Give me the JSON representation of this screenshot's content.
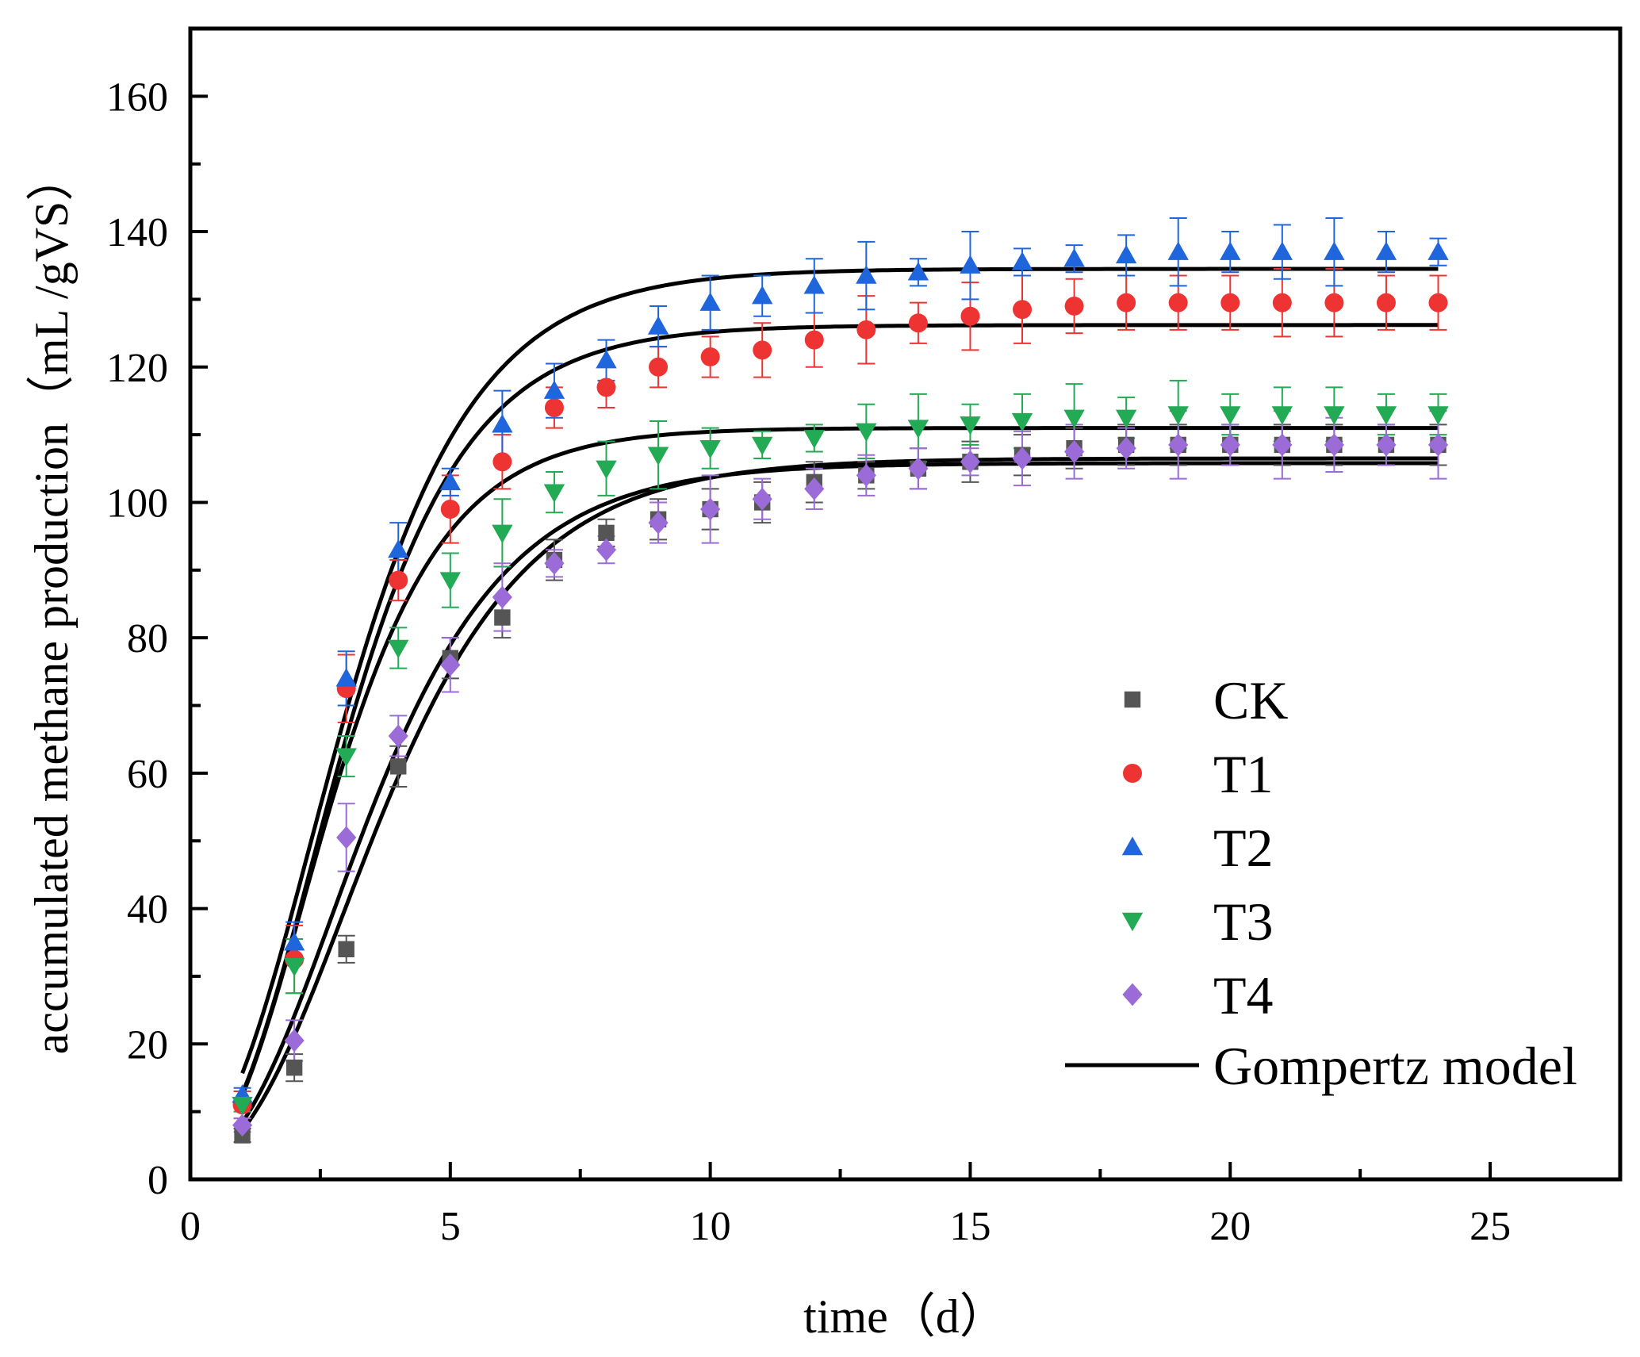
{
  "chart_data": {
    "type": "scatter",
    "title": "",
    "xlabel": "time（d）",
    "ylabel": "accumulated methane production（mL /gVS）",
    "xlim": [
      0,
      27.5
    ],
    "ylim": [
      0,
      170
    ],
    "xticks": [
      0,
      5,
      10,
      15,
      20,
      25
    ],
    "yticks": [
      0,
      20,
      40,
      60,
      80,
      100,
      120,
      140,
      160
    ],
    "x_tick_labels": [
      "0",
      "5",
      "10",
      "15",
      "20",
      "25"
    ],
    "y_tick_labels": [
      "0",
      "20",
      "40",
      "60",
      "80",
      "100",
      "120",
      "140",
      "160"
    ],
    "legend_position": "right",
    "series": [
      {
        "name": "CK",
        "marker": "square",
        "color": "#555555",
        "x": [
          1,
          2,
          3,
          4,
          5,
          6,
          7,
          8,
          9,
          10,
          11,
          12,
          13,
          14,
          15,
          16,
          17,
          18,
          19,
          20,
          21,
          22,
          23,
          24
        ],
        "y": [
          6.5,
          16.5,
          34,
          61,
          77,
          83,
          91.5,
          95.5,
          97.5,
          99,
          100,
          103,
          104,
          105,
          106,
          107,
          108,
          108.5,
          108.5,
          108.5,
          108.5,
          108.5,
          108.5,
          108.5
        ],
        "err": [
          1,
          2,
          2,
          3,
          3,
          3,
          3,
          2,
          3,
          3,
          3,
          3,
          2,
          3,
          3,
          3,
          3,
          3,
          3,
          3,
          3,
          3,
          3,
          3
        ]
      },
      {
        "name": "T1",
        "marker": "circle",
        "color": "#ee3333",
        "x": [
          1,
          2,
          3,
          4,
          5,
          6,
          7,
          8,
          9,
          10,
          11,
          12,
          13,
          14,
          15,
          16,
          17,
          18,
          19,
          20,
          21,
          22,
          23,
          24
        ],
        "y": [
          11,
          32.5,
          72.5,
          88.5,
          99,
          106,
          114,
          117,
          120,
          121.5,
          122.5,
          124,
          125.5,
          126.5,
          127.5,
          128.5,
          129,
          129.5,
          129.5,
          129.5,
          129.5,
          129.5,
          129.5,
          129.5
        ],
        "err": [
          2,
          5,
          5,
          3,
          5,
          4,
          3,
          3,
          3,
          3,
          4,
          4,
          5,
          3,
          5,
          5,
          4,
          4,
          4,
          4,
          5,
          5,
          4,
          4
        ]
      },
      {
        "name": "T2",
        "marker": "triangle-up",
        "color": "#1f66dd",
        "x": [
          1,
          2,
          3,
          4,
          5,
          6,
          7,
          8,
          9,
          10,
          11,
          12,
          13,
          14,
          15,
          16,
          17,
          18,
          19,
          20,
          21,
          22,
          23,
          24
        ],
        "y": [
          12.5,
          35,
          74,
          93,
          103,
          111.5,
          116.5,
          121,
          126,
          129.5,
          130.5,
          132,
          133.5,
          134,
          135,
          135.5,
          136,
          136.5,
          137,
          137,
          137,
          137,
          137,
          137
        ],
        "err": [
          1,
          3,
          4,
          4,
          2,
          5,
          4,
          3,
          3,
          4,
          3,
          4,
          5,
          2,
          5,
          2,
          2,
          3,
          5,
          3,
          4,
          5,
          3,
          2
        ]
      },
      {
        "name": "T3",
        "marker": "triangle-down",
        "color": "#22aa55",
        "x": [
          1,
          2,
          3,
          4,
          5,
          6,
          7,
          8,
          9,
          10,
          11,
          12,
          13,
          14,
          15,
          16,
          17,
          18,
          19,
          20,
          21,
          22,
          23,
          24
        ],
        "y": [
          11,
          31.5,
          62.5,
          78.5,
          88.5,
          95.5,
          101.5,
          105,
          107,
          108,
          108.5,
          109.5,
          110.5,
          111,
          111.5,
          112,
          112.5,
          112.5,
          113,
          113,
          113,
          113,
          113,
          113
        ],
        "err": [
          1,
          4,
          3,
          3,
          4,
          5,
          3,
          4,
          5,
          3,
          2,
          2,
          4,
          5,
          3,
          4,
          5,
          3,
          5,
          3,
          4,
          4,
          3,
          3
        ]
      },
      {
        "name": "T4",
        "marker": "diamond",
        "color": "#9b6bd8",
        "x": [
          1,
          2,
          3,
          4,
          5,
          6,
          7,
          8,
          9,
          10,
          11,
          12,
          13,
          14,
          15,
          16,
          17,
          18,
          19,
          20,
          21,
          22,
          23,
          24
        ],
        "y": [
          8,
          20.5,
          50.5,
          65.5,
          76,
          86,
          91,
          93,
          97,
          99,
          100.5,
          102,
          104,
          105,
          106,
          106.5,
          107.5,
          108,
          108.5,
          108.5,
          108.5,
          108.5,
          108.5,
          108.5
        ],
        "err": [
          1,
          3,
          5,
          3,
          4,
          5,
          2,
          2,
          3,
          5,
          3,
          3,
          3,
          3,
          2,
          4,
          4,
          3,
          5,
          3,
          5,
          4,
          3,
          5
        ]
      }
    ],
    "model": {
      "name": "Gompertz model",
      "color": "#000000",
      "curves": [
        {
          "series": "CK",
          "P": 106.5,
          "Rm": 20.0,
          "lambda": 0.98
        },
        {
          "series": "T1",
          "P": 126.2,
          "Rm": 29.0,
          "lambda": 0.73
        },
        {
          "series": "T2",
          "P": 134.5,
          "Rm": 29.0,
          "lambda": 0.6
        },
        {
          "series": "T3",
          "P": 111.0,
          "Rm": 27.5,
          "lambda": 0.68
        },
        {
          "series": "T4",
          "P": 105.8,
          "Rm": 21.0,
          "lambda": 0.87
        }
      ]
    }
  }
}
